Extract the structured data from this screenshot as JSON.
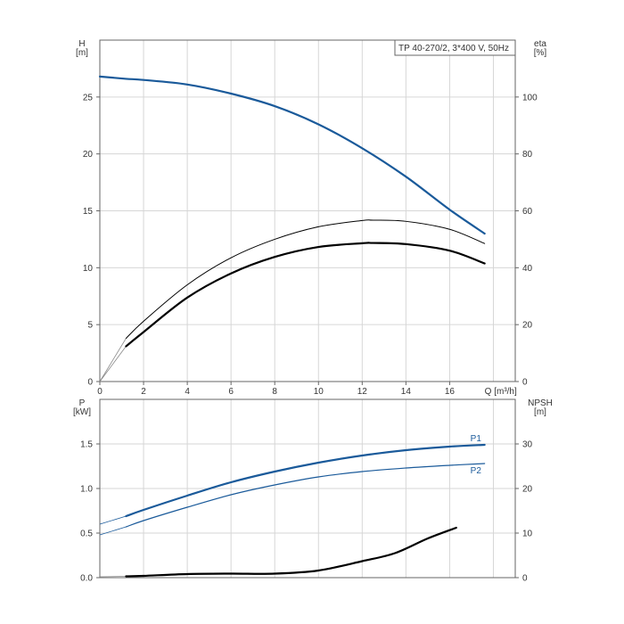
{
  "chart_data": [
    {
      "type": "line",
      "title": "TP 40-270/2, 3*400 V, 50Hz",
      "y_label_left": [
        "H",
        "[m]"
      ],
      "y_label_right": [
        "eta",
        "[%]"
      ],
      "xlabel": "Q [m³/h]",
      "xlim": [
        0,
        19
      ],
      "ylim_left": [
        0,
        30
      ],
      "ylim_right": [
        0,
        120
      ],
      "x_ticks": [
        "0",
        "2",
        "4",
        "6",
        "8",
        "10",
        "12",
        "14",
        "16"
      ],
      "y_ticks_left": [
        "0",
        "5",
        "10",
        "15",
        "20",
        "25"
      ],
      "y_ticks_right": [
        "0",
        "20",
        "40",
        "60",
        "80",
        "100"
      ],
      "grid": true,
      "series": [
        {
          "axis": "left",
          "color": "#1a5a9a",
          "width": 2.2,
          "x": [
            0,
            1.2,
            2,
            4,
            6,
            8,
            10,
            12,
            14,
            16,
            17.6
          ],
          "y": [
            26.8,
            26.6,
            26.5,
            26.1,
            25.3,
            24.2,
            22.6,
            20.5,
            18.0,
            15.1,
            13.0
          ]
        },
        {
          "axis": "right",
          "color": "#000000",
          "width": 1.0,
          "x": [
            1.2,
            2,
            4,
            6,
            8,
            10,
            12,
            12.5,
            14,
            16,
            17.6
          ],
          "y": [
            15.2,
            21.2,
            34.0,
            43.5,
            50.0,
            54.4,
            56.6,
            56.7,
            56.3,
            53.5,
            48.5
          ]
        },
        {
          "axis": "right",
          "color": "#000000",
          "width": 2.2,
          "x": [
            1.2,
            2,
            4,
            6,
            8,
            10,
            12,
            12.5,
            14,
            16,
            17.6
          ],
          "y": [
            12.4,
            17.4,
            29.5,
            38.0,
            43.8,
            47.3,
            48.6,
            48.7,
            48.3,
            46.0,
            41.5
          ]
        }
      ]
    },
    {
      "type": "line",
      "y_label_left": [
        "P",
        "[kW]"
      ],
      "y_label_right": [
        "NPSH",
        "[m]"
      ],
      "xlim": [
        0,
        19
      ],
      "ylim_left": [
        0,
        2.0
      ],
      "ylim_right": [
        0,
        40
      ],
      "x_ticks": [],
      "y_ticks_left": [
        "0.0",
        "0.5",
        "1.0",
        "1.5"
      ],
      "y_ticks_right": [
        "0",
        "10",
        "20",
        "30"
      ],
      "grid": true,
      "series": [
        {
          "name": "P1",
          "axis": "left",
          "color": "#1a5a9a",
          "width": 2.2,
          "x": [
            1.2,
            2,
            4,
            6,
            8,
            10,
            12,
            14,
            16,
            17.6
          ],
          "y": [
            0.69,
            0.76,
            0.92,
            1.07,
            1.19,
            1.29,
            1.37,
            1.43,
            1.47,
            1.49
          ]
        },
        {
          "name": "P2",
          "axis": "left",
          "color": "#1a5a9a",
          "width": 1.2,
          "x": [
            1.2,
            2,
            4,
            6,
            8,
            10,
            12,
            14,
            16,
            17.6
          ],
          "y": [
            0.57,
            0.64,
            0.79,
            0.93,
            1.04,
            1.13,
            1.19,
            1.23,
            1.26,
            1.28
          ]
        },
        {
          "axis": "right",
          "color": "#000000",
          "width": 2.2,
          "x": [
            1.2,
            2,
            4,
            6,
            8,
            10,
            12,
            13.5,
            15,
            16.3
          ],
          "y": [
            0.3,
            0.4,
            0.8,
            0.9,
            0.9,
            1.6,
            3.7,
            5.5,
            8.8,
            11.2
          ]
        }
      ]
    }
  ]
}
